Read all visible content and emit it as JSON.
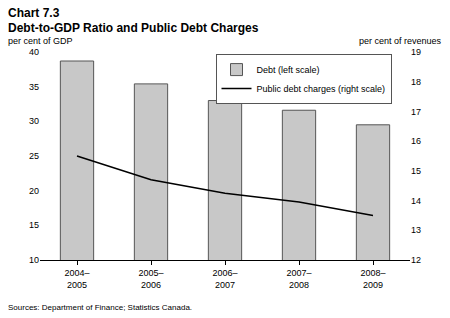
{
  "chart_data": {
    "type": "bar",
    "subtitle": "Chart 7.3",
    "title": "Debt-to-GDP Ratio and Public Debt Charges",
    "ylabel": "per cent of GDP",
    "y2label": "per cent of revenues",
    "source": "Sources: Department of Finance; Statistics Canada.",
    "categories": [
      "2004–2005",
      "2005–2006",
      "2006–2007",
      "2007–2008",
      "2008–2009"
    ],
    "series": [
      {
        "name": "Debt (left scale)",
        "type": "bar",
        "color": "#c8c8c8",
        "values": [
          38.7,
          35.4,
          33.0,
          31.6,
          29.5
        ]
      },
      {
        "name": "Public debt charges (right scale)",
        "type": "line",
        "axis": "y2",
        "color": "#000000",
        "values": [
          15.5,
          14.7,
          14.25,
          13.95,
          13.5
        ]
      }
    ],
    "ylim": [
      10,
      40
    ],
    "yticks": [
      10,
      15,
      20,
      25,
      30,
      35,
      40
    ],
    "y2lim": [
      12,
      19
    ],
    "y2ticks": [
      12,
      13,
      14,
      15,
      16,
      17,
      18,
      19
    ],
    "grid": false,
    "legend": "top right"
  }
}
